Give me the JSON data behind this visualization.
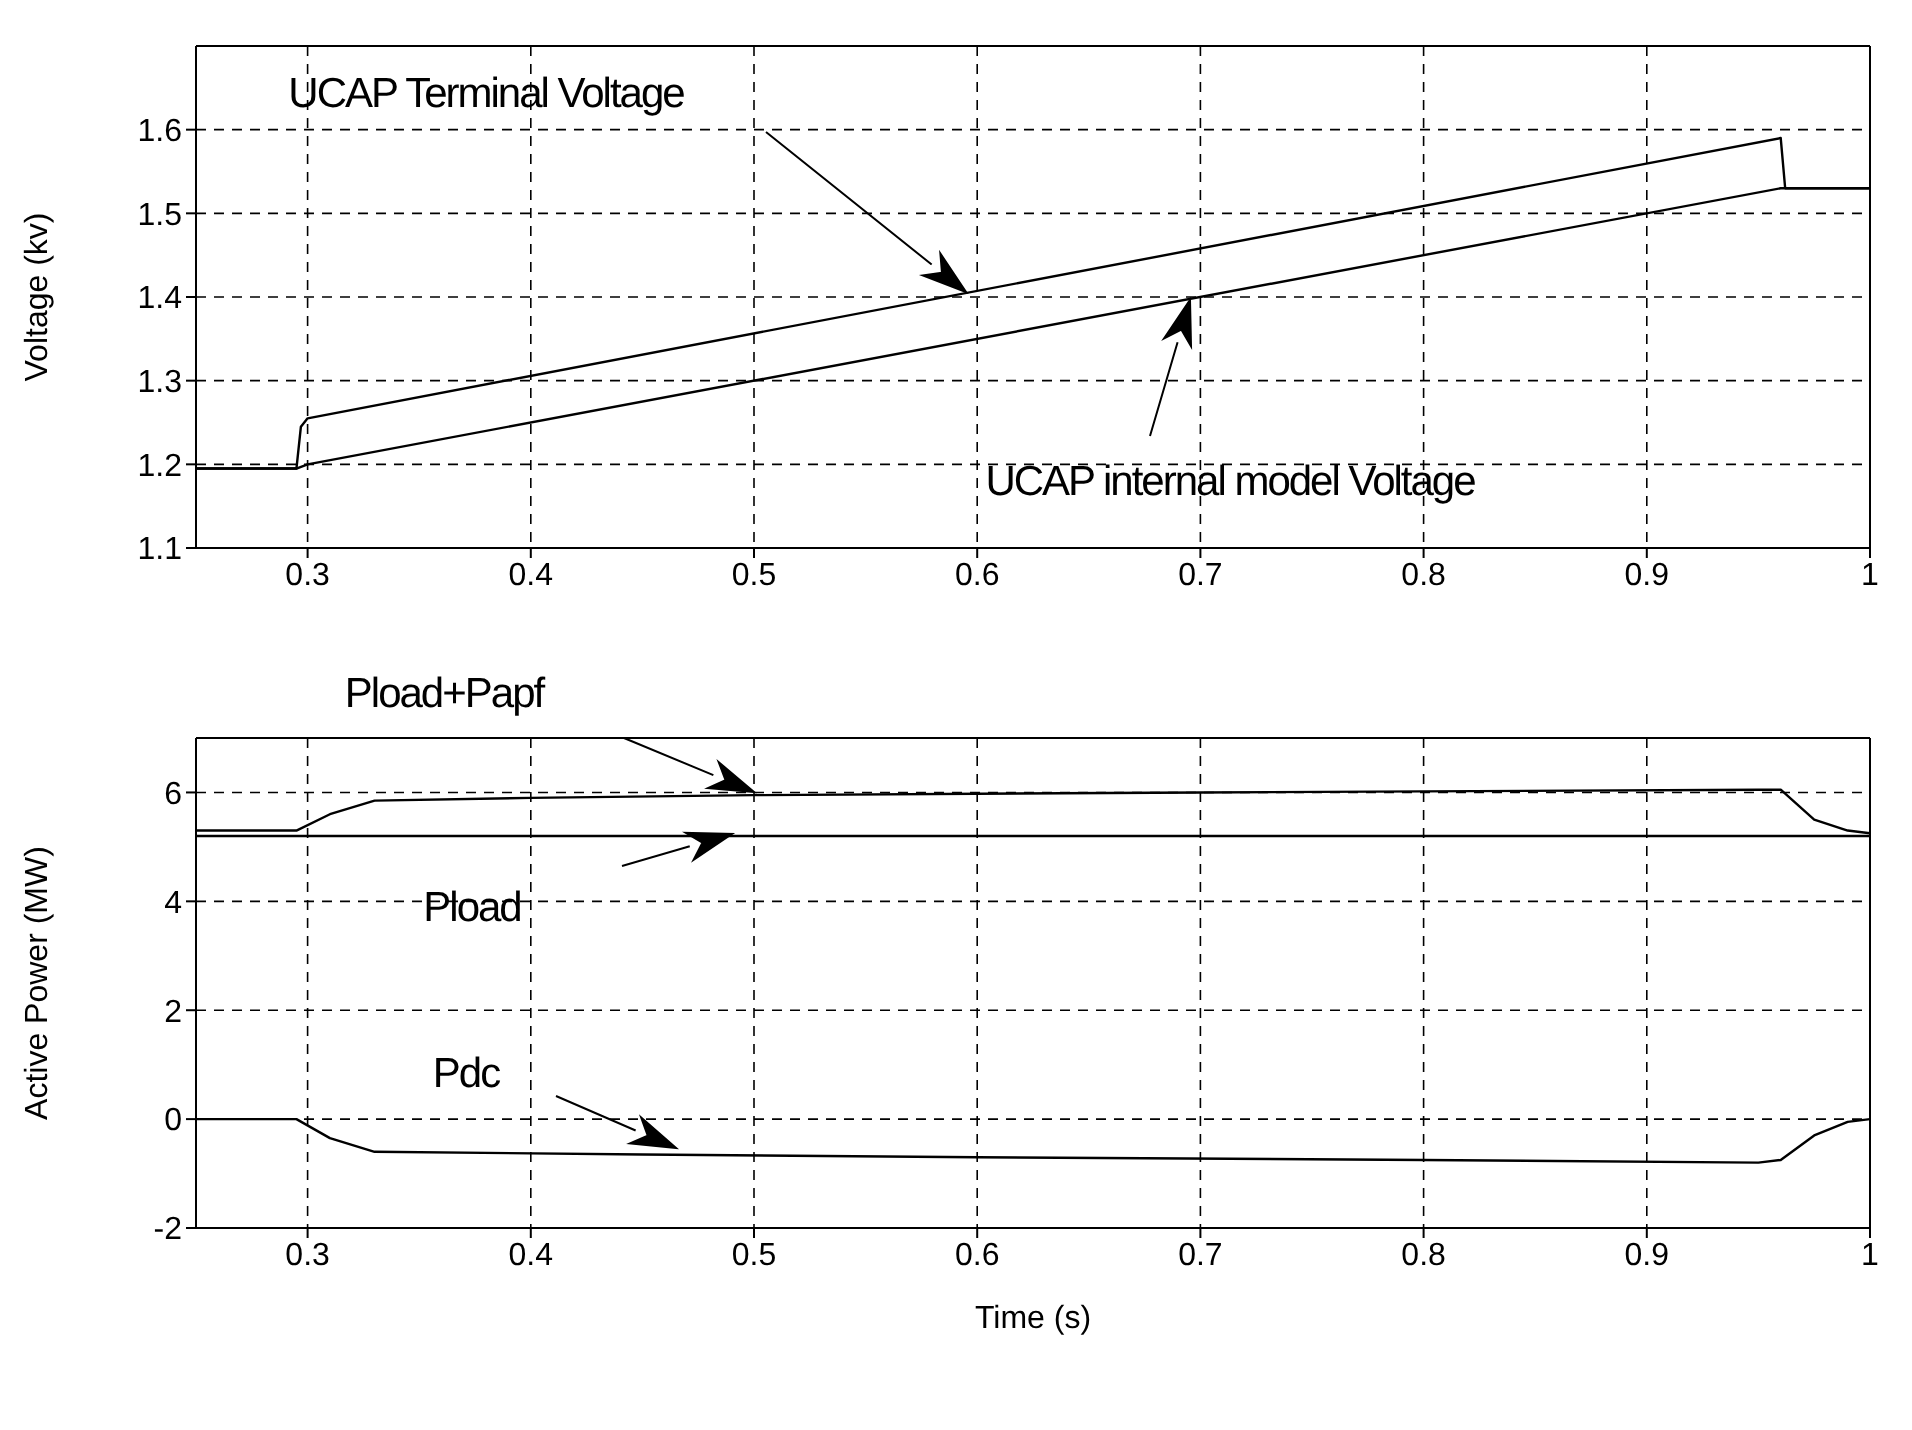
{
  "chart_data": [
    {
      "type": "line",
      "ylabel": "Voltage (kv)",
      "xlim": [
        0.25,
        1
      ],
      "xticks": [
        0.3,
        0.4,
        0.5,
        0.6,
        0.7,
        0.8,
        0.9,
        1
      ],
      "ylim": [
        1.1,
        1.7
      ],
      "yticks": [
        1.1,
        1.2,
        1.3,
        1.4,
        1.5,
        1.6
      ],
      "grid": true,
      "marker": "none",
      "line_style": "solid",
      "series": [
        {
          "color": "#000000",
          "x": [
            0.25,
            0.295,
            0.297,
            0.3,
            0.96,
            0.962,
            1.0
          ],
          "values": [
            1.195,
            1.195,
            1.245,
            1.255,
            1.59,
            1.53,
            1.53
          ]
        },
        {
          "color": "#000000",
          "x": [
            0.25,
            0.295,
            0.3,
            0.96,
            1.0
          ],
          "values": [
            1.195,
            1.195,
            1.2,
            1.53,
            1.53
          ]
        }
      ],
      "annotations": [
        "UCAP Terminal Voltage",
        "UCAP internal model  Voltage"
      ]
    },
    {
      "type": "line",
      "xlabel": "Time (s)",
      "ylabel": "Active Power (MW)",
      "xlim": [
        0.25,
        1
      ],
      "xticks": [
        0.3,
        0.4,
        0.5,
        0.6,
        0.7,
        0.8,
        0.9,
        1
      ],
      "ylim": [
        -2,
        7
      ],
      "yticks": [
        -2,
        0,
        2,
        4,
        6
      ],
      "grid": true,
      "marker": "none",
      "line_style": "solid",
      "series": [
        {
          "color": "#000000",
          "x": [
            0.25,
            0.295,
            0.31,
            0.33,
            0.4,
            0.5,
            0.7,
            0.95,
            0.96,
            0.975,
            0.99,
            1.0
          ],
          "values": [
            5.3,
            5.3,
            5.6,
            5.85,
            5.9,
            5.95,
            6.0,
            6.05,
            6.05,
            5.5,
            5.3,
            5.25
          ]
        },
        {
          "color": "#000000",
          "x": [
            0.25,
            1.0
          ],
          "values": [
            5.2,
            5.2
          ]
        },
        {
          "color": "#000000",
          "x": [
            0.25,
            0.295,
            0.31,
            0.33,
            0.45,
            0.6,
            0.8,
            0.95,
            0.96,
            0.975,
            0.99,
            1.0
          ],
          "values": [
            0,
            0,
            -0.35,
            -0.6,
            -0.65,
            -0.7,
            -0.75,
            -0.8,
            -0.75,
            -0.3,
            -0.05,
            0
          ]
        }
      ],
      "annotations": [
        "Pload+Papf",
        "Pload",
        "Pdc"
      ]
    }
  ]
}
